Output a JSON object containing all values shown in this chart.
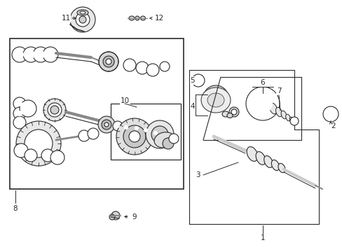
{
  "background_color": "#ffffff",
  "line_color": "#2a2a2a",
  "figsize": [
    4.89,
    3.6
  ],
  "dpi": 100,
  "label_fontsize": 7.5
}
